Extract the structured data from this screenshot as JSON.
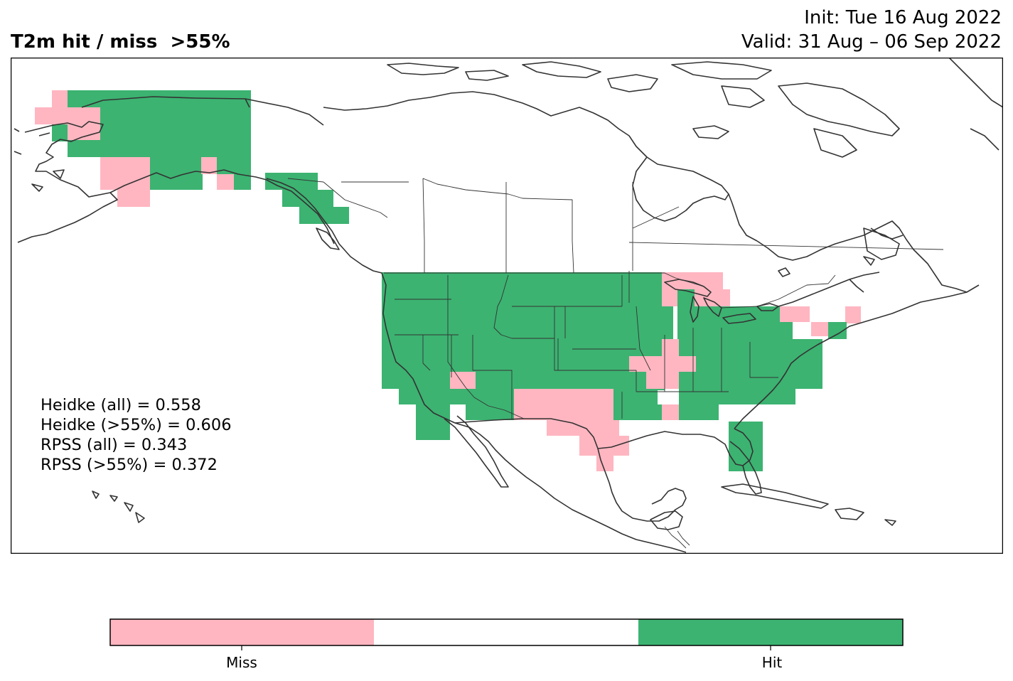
{
  "header": {
    "title": "T2m hit / miss  >55%",
    "init": "Init: Tue 16 Aug 2022",
    "valid": "Valid: 31 Aug – 06 Sep 2022"
  },
  "scores": [
    "Heidke (all) = 0.558",
    "Heidke (>55%) = 0.606",
    "RPSS (all) = 0.343",
    "RPSS (>55%) = 0.372"
  ],
  "colors": {
    "miss": "#ffb6c1",
    "neutral": "#ffffff",
    "hit": "#3cb371",
    "coastline": "#333333"
  },
  "legend": {
    "miss_label": "Miss",
    "hit_label": "Hit"
  }
}
